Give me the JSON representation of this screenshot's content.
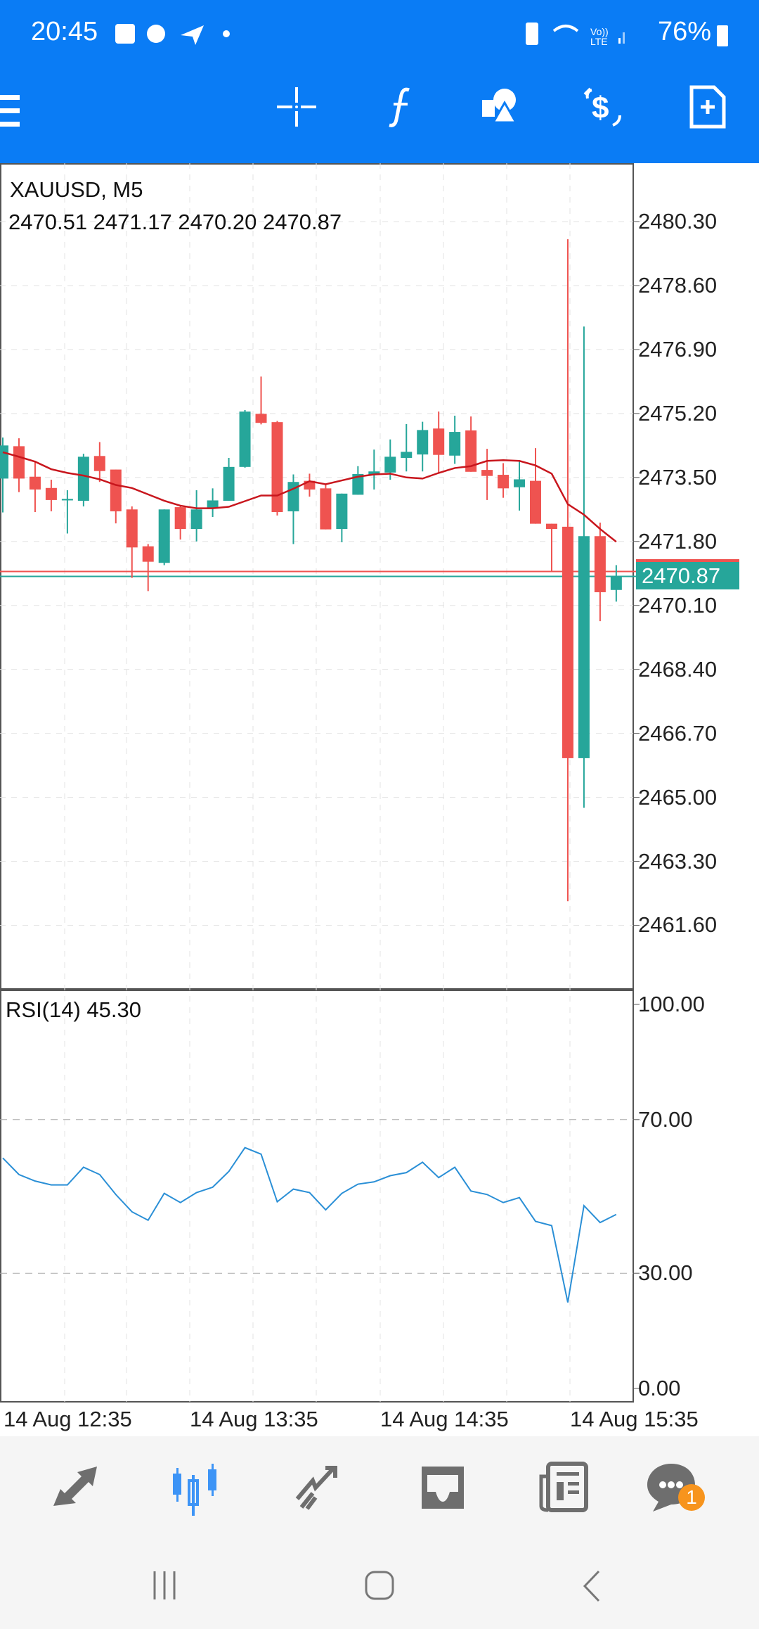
{
  "status": {
    "time": "20:45",
    "battery": "76%"
  },
  "chart": {
    "symbol": "XAUUSD, M5",
    "ohlc": "2470.51 2471.17 2470.20 2470.87",
    "current_price": "2470.87",
    "rsi_label": "RSI(14) 45.30",
    "price_labels": [
      "2480.30",
      "2478.60",
      "2476.90",
      "2475.20",
      "2473.50",
      "2471.80",
      "2470.10",
      "2468.40",
      "2466.70",
      "2465.00",
      "2463.30",
      "2461.60"
    ],
    "rsi_labels": [
      "100.00",
      "70.00",
      "30.00",
      "0.00"
    ],
    "time_labels": [
      "14 Aug 12:35",
      "14 Aug 13:35",
      "14 Aug 14:35",
      "14 Aug 15:35"
    ]
  },
  "badge": "1",
  "colors": {
    "brand": "#0a7cf5",
    "bull": "#26a69a",
    "bear": "#ef5350",
    "ma": "#c8161d",
    "rsi": "#2a8fd6",
    "active": "#3d94f6",
    "icon": "#6e6e6e",
    "badge": "#f7941d"
  },
  "chart_data": {
    "type": "candlestick",
    "symbol": "XAUUSD",
    "timeframe": "M5",
    "ylim": [
      2460.5,
      2481.5
    ],
    "ohlc": [
      [
        2473.47,
        2474.56,
        2472.57,
        2474.35
      ],
      [
        2474.33,
        2474.54,
        2473.11,
        2473.47
      ],
      [
        2473.52,
        2473.94,
        2472.58,
        2473.18
      ],
      [
        2473.22,
        2473.44,
        2472.6,
        2472.9
      ],
      [
        2472.89,
        2473.16,
        2472.01,
        2472.93
      ],
      [
        2472.88,
        2474.13,
        2472.73,
        2474.05
      ],
      [
        2474.07,
        2474.44,
        2473.38,
        2473.67
      ],
      [
        2473.71,
        2473.71,
        2472.28,
        2472.6
      ],
      [
        2472.65,
        2472.73,
        2470.83,
        2471.64
      ],
      [
        2471.67,
        2471.73,
        2470.48,
        2471.26
      ],
      [
        2471.23,
        2472.65,
        2471.17,
        2472.65
      ],
      [
        2472.71,
        2472.76,
        2471.85,
        2472.13
      ],
      [
        2472.13,
        2473.16,
        2471.8,
        2472.65
      ],
      [
        2472.68,
        2473.21,
        2472.45,
        2472.89
      ],
      [
        2472.88,
        2474.02,
        2472.88,
        2473.78
      ],
      [
        2473.78,
        2475.29,
        2473.76,
        2475.25
      ],
      [
        2475.19,
        2476.18,
        2474.91,
        2474.95
      ],
      [
        2474.97,
        2475.0,
        2472.49,
        2472.58
      ],
      [
        2472.6,
        2473.58,
        2471.73,
        2473.38
      ],
      [
        2473.41,
        2473.6,
        2472.99,
        2473.18
      ],
      [
        2473.21,
        2473.3,
        2472.12,
        2472.12
      ],
      [
        2472.13,
        2473.07,
        2471.78,
        2473.07
      ],
      [
        2473.04,
        2473.8,
        2473.04,
        2473.59
      ],
      [
        2473.57,
        2474.24,
        2473.18,
        2473.66
      ],
      [
        2473.63,
        2474.51,
        2473.44,
        2474.05
      ],
      [
        2474.02,
        2474.92,
        2473.66,
        2474.18
      ],
      [
        2474.11,
        2474.98,
        2473.66,
        2474.76
      ],
      [
        2474.8,
        2475.25,
        2473.63,
        2474.1
      ],
      [
        2474.08,
        2475.14,
        2473.86,
        2474.71
      ],
      [
        2474.75,
        2475.12,
        2473.65,
        2473.65
      ],
      [
        2473.7,
        2474.26,
        2472.9,
        2473.54
      ],
      [
        2473.57,
        2473.88,
        2472.96,
        2473.21
      ],
      [
        2473.24,
        2473.94,
        2472.62,
        2473.45
      ],
      [
        2473.41,
        2474.28,
        2472.27,
        2472.27
      ],
      [
        2472.27,
        2472.27,
        2471.01,
        2472.13
      ],
      [
        2472.19,
        2479.83,
        2462.24,
        2466.04
      ],
      [
        2466.04,
        2477.51,
        2464.72,
        2471.94
      ],
      [
        2471.94,
        2472.3,
        2469.68,
        2470.45
      ],
      [
        2470.51,
        2471.17,
        2470.2,
        2470.87
      ]
    ],
    "ma": [
      2474.17,
      2474.05,
      2473.92,
      2473.72,
      2473.62,
      2473.55,
      2473.45,
      2473.3,
      2473.22,
      2473.05,
      2472.88,
      2472.75,
      2472.68,
      2472.68,
      2472.72,
      2472.87,
      2473.02,
      2473.02,
      2473.2,
      2473.4,
      2473.32,
      2473.42,
      2473.52,
      2473.58,
      2473.6,
      2473.5,
      2473.47,
      2473.62,
      2473.75,
      2473.8,
      2473.94,
      2473.96,
      2473.94,
      2473.82,
      2473.6,
      2472.79,
      2472.51,
      2472.13,
      2471.79
    ],
    "ask": 2471.0,
    "bid": 2470.87,
    "rsi": {
      "period": 14,
      "ylim": [
        0,
        100
      ],
      "levels": [
        70,
        30
      ],
      "values": [
        60,
        55.7,
        54,
        53,
        53,
        57.6,
        55.7,
        50.5,
        46,
        43.8,
        50.8,
        48.4,
        51,
        52.4,
        56.5,
        62.7,
        61,
        48.6,
        51.9,
        51,
        46.5,
        50.8,
        53.2,
        53.8,
        55.4,
        56.2,
        58.9,
        54.9,
        57.6,
        51.4,
        50.5,
        48.4,
        49.7,
        43.5,
        42.4,
        22.4,
        47.6,
        43.2,
        45.3
      ]
    }
  }
}
